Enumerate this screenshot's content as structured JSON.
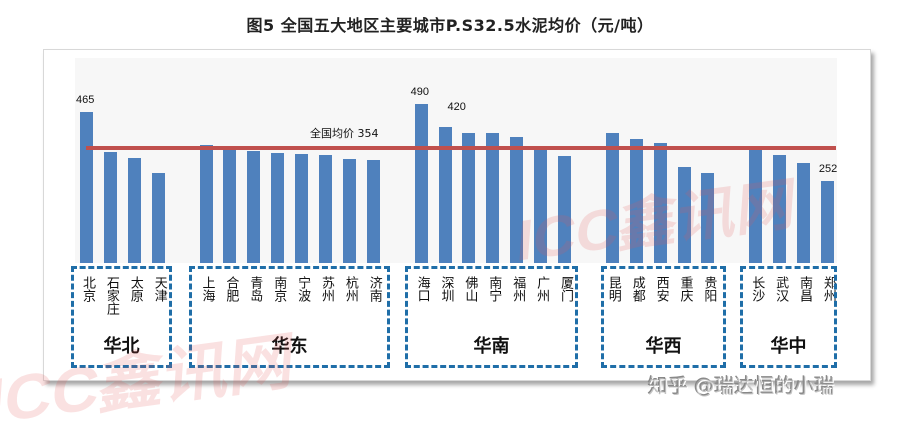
{
  "title": "图5 全国五大地区主要城市P.S32.5水泥均价（元/吨）",
  "average": {
    "label": "全国均价",
    "value": 354,
    "label_text": "全国均价  354"
  },
  "colors": {
    "bar": "#4f81bd",
    "avg_line": "#c0504d",
    "group_border": "#1f6ea8"
  },
  "groups": [
    {
      "name": "华北",
      "cities": [
        "北京",
        "石家庄",
        "太原",
        "天津"
      ]
    },
    {
      "name": "华东",
      "cities": [
        "上海",
        "合肥",
        "青岛",
        "南京",
        "宁波",
        "苏州",
        "杭州",
        "济南"
      ]
    },
    {
      "name": "华南",
      "cities": [
        "海口",
        "深圳",
        "佛山",
        "南宁",
        "福州",
        "广州",
        "厦门"
      ]
    },
    {
      "name": "华西",
      "cities": [
        "昆明",
        "成都",
        "西安",
        "重庆",
        "贵阳"
      ]
    },
    {
      "name": "华中",
      "cities": [
        "长沙",
        "武汉",
        "南昌",
        "郑州"
      ]
    }
  ],
  "data_labels": {
    "北京": "465",
    "海口": "490",
    "深圳": "420",
    "郑州": "252"
  },
  "watermarks": {
    "center": "ICC鑫讯网",
    "corner": "ICC鑫讯网",
    "credit": "知乎 @瑞达恒的小瑞"
  },
  "chart_data": {
    "type": "bar",
    "title": "图5 全国五大地区主要城市P.S32.5水泥均价（元/吨）",
    "xlabel": "",
    "ylabel": "元/吨",
    "ylim": [
      0,
      620
    ],
    "grid": false,
    "legend": null,
    "categories": [
      "北京",
      "石家庄",
      "太原",
      "天津",
      "上海",
      "合肥",
      "青岛",
      "南京",
      "宁波",
      "苏州",
      "杭州",
      "济南",
      "海口",
      "深圳",
      "佛山",
      "南宁",
      "福州",
      "广州",
      "厦门",
      "昆明",
      "成都",
      "西安",
      "重庆",
      "贵阳",
      "长沙",
      "武汉",
      "南昌",
      "郑州"
    ],
    "values": [
      465,
      342,
      323,
      277,
      363,
      354,
      345,
      338,
      335,
      332,
      320,
      317,
      490,
      420,
      400,
      400,
      388,
      360,
      329,
      400,
      382,
      369,
      295,
      277,
      360,
      332,
      308,
      252
    ],
    "groups": [
      {
        "name": "华北",
        "range": [
          0,
          3
        ]
      },
      {
        "name": "华东",
        "range": [
          4,
          11
        ]
      },
      {
        "name": "华南",
        "range": [
          12,
          18
        ]
      },
      {
        "name": "华西",
        "range": [
          19,
          23
        ]
      },
      {
        "name": "华中",
        "range": [
          24,
          27
        ]
      }
    ],
    "reference_line": {
      "label": "全国均价",
      "value": 354
    },
    "annotations": [
      {
        "category": "北京",
        "text": "465"
      },
      {
        "category": "海口",
        "text": "490"
      },
      {
        "category": "深圳",
        "text": "420"
      },
      {
        "category": "郑州",
        "text": "252"
      },
      {
        "text": "全国均价 354"
      }
    ]
  }
}
